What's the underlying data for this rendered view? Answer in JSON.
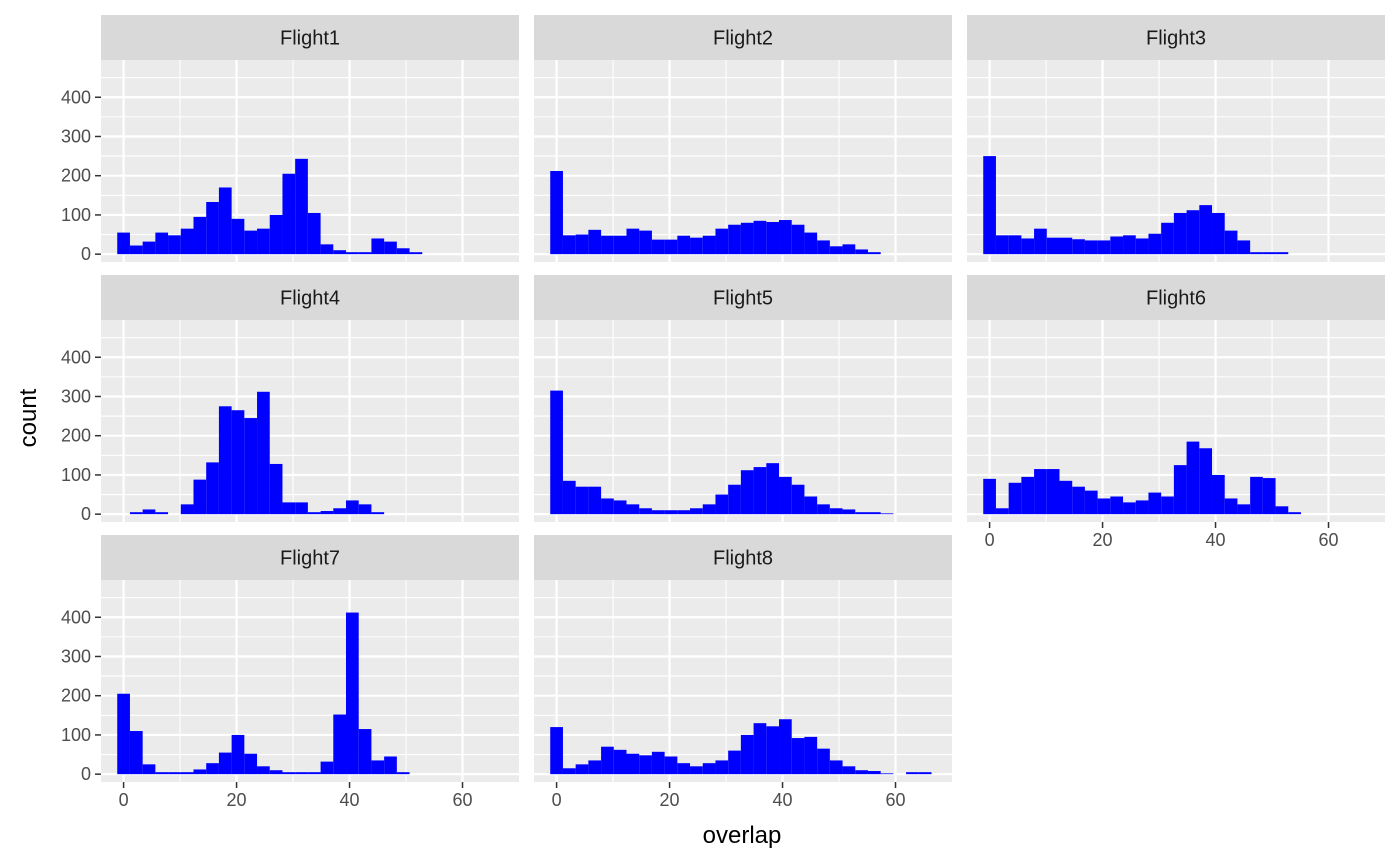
{
  "colors": {
    "bar": "#0000ff",
    "panel_bg": "#ebebeb",
    "strip_bg": "#d9d9d9",
    "grid": "#ffffff",
    "tick": "#333333"
  },
  "chart_data": {
    "type": "bar",
    "xlabel": "overlap",
    "ylabel": "count",
    "xlim": [
      -4,
      70
    ],
    "ylim": [
      -20,
      495
    ],
    "x_ticks": [
      0,
      20,
      40,
      60
    ],
    "y_ticks": [
      0,
      100,
      200,
      300,
      400
    ],
    "grid": true,
    "bin_width": 2.25,
    "bin_start": 0,
    "panels": [
      {
        "name": "Flight1",
        "values": [
          55,
          22,
          32,
          55,
          48,
          65,
          95,
          133,
          170,
          90,
          60,
          65,
          100,
          205,
          243,
          105,
          25,
          10,
          5,
          5,
          40,
          32,
          15,
          5
        ]
      },
      {
        "name": "Flight2",
        "values": [
          212,
          48,
          50,
          62,
          47,
          47,
          65,
          60,
          37,
          37,
          47,
          42,
          47,
          65,
          75,
          80,
          85,
          82,
          87,
          75,
          55,
          35,
          20,
          25,
          12,
          5
        ]
      },
      {
        "name": "Flight3",
        "values": [
          250,
          48,
          48,
          40,
          65,
          42,
          42,
          38,
          35,
          35,
          45,
          48,
          40,
          52,
          80,
          105,
          112,
          125,
          105,
          60,
          35,
          5,
          5,
          5
        ]
      },
      {
        "name": "Flight4",
        "values": [
          0,
          5,
          12,
          5,
          0,
          25,
          88,
          132,
          275,
          265,
          245,
          312,
          128,
          30,
          30,
          5,
          8,
          15,
          35,
          25,
          5
        ]
      },
      {
        "name": "Flight5",
        "values": [
          315,
          85,
          70,
          70,
          40,
          35,
          25,
          15,
          10,
          10,
          10,
          15,
          25,
          50,
          75,
          112,
          120,
          130,
          95,
          75,
          45,
          25,
          15,
          12,
          5,
          5,
          2
        ]
      },
      {
        "name": "Flight6",
        "values": [
          90,
          15,
          80,
          95,
          115,
          115,
          85,
          70,
          60,
          40,
          45,
          30,
          35,
          55,
          45,
          125,
          185,
          168,
          100,
          40,
          25,
          95,
          92,
          20,
          5
        ]
      },
      {
        "name": "Flight7",
        "values": [
          205,
          110,
          25,
          5,
          5,
          5,
          12,
          28,
          55,
          100,
          52,
          20,
          10,
          5,
          5,
          5,
          32,
          152,
          412,
          115,
          35,
          45,
          5
        ]
      },
      {
        "name": "Flight8",
        "values": [
          120,
          15,
          25,
          35,
          70,
          62,
          52,
          48,
          57,
          45,
          28,
          20,
          28,
          35,
          60,
          100,
          130,
          122,
          140,
          92,
          95,
          65,
          35,
          20,
          10,
          8,
          2,
          0,
          5,
          5
        ]
      }
    ]
  }
}
